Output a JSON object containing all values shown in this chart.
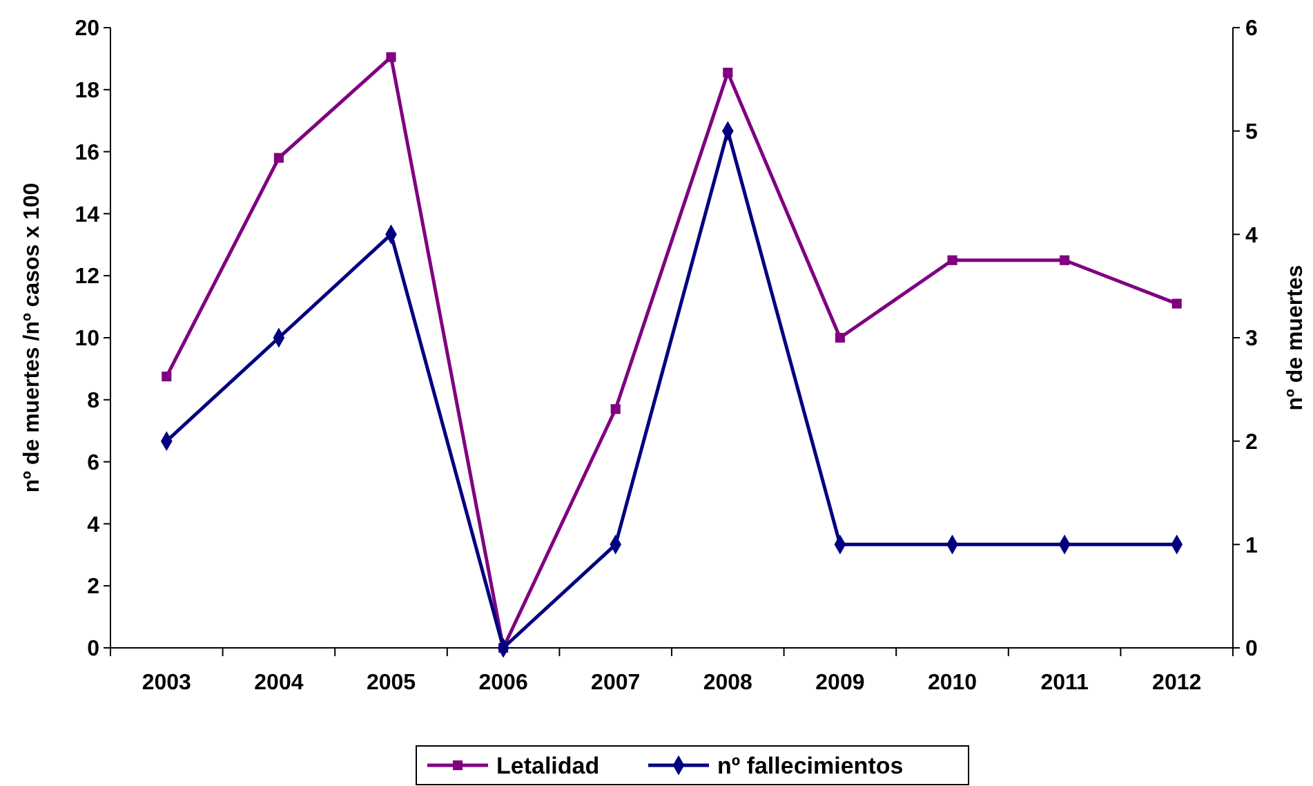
{
  "chart_data": {
    "type": "line",
    "categories": [
      "2003",
      "2004",
      "2005",
      "2006",
      "2007",
      "2008",
      "2009",
      "2010",
      "2011",
      "2012"
    ],
    "ylabel": "nº de muertes /nº casos x 100",
    "y2label": "nº de muertes",
    "ylim": [
      0,
      20
    ],
    "yticks": [
      0,
      2,
      4,
      6,
      8,
      10,
      12,
      14,
      16,
      18,
      20
    ],
    "y2lim": [
      0,
      6
    ],
    "y2ticks": [
      0,
      1,
      2,
      3,
      4,
      5,
      6
    ],
    "legend": "bottom",
    "grid": false,
    "series": [
      {
        "name": "Letalidad",
        "color": "#800080",
        "marker": "square",
        "values": [
          8.75,
          15.8,
          19.05,
          0,
          7.7,
          18.55,
          10,
          12.5,
          12.5,
          11.1
        ]
      },
      {
        "name": "nº fallecimientos",
        "color": "#000080",
        "marker": "diamond",
        "axis": "y2",
        "values": [
          2,
          3,
          4,
          0,
          1,
          5,
          1,
          1,
          1,
          1
        ]
      }
    ]
  }
}
